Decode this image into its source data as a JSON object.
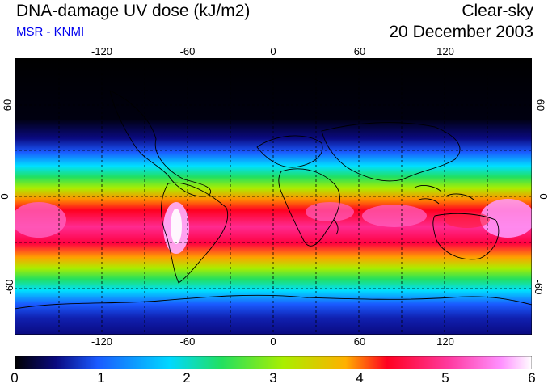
{
  "header": {
    "title": "DNA-damage UV dose (kJ/m2)",
    "subtitle": "MSR - KNMI",
    "condition": "Clear-sky",
    "date": "20 December 2003"
  },
  "map": {
    "projection": "cylindrical",
    "lon_ticks": [
      "-120",
      "-60",
      "0",
      "60",
      "120"
    ],
    "lat_ticks_left": [
      "60",
      "0",
      "-60"
    ],
    "lat_ticks_right": [
      "60",
      "0",
      "-60"
    ],
    "gridlines": "dashed every 30 degrees"
  },
  "colorbar": {
    "labels": [
      "0",
      "1",
      "2",
      "3",
      "4",
      "5",
      "6"
    ],
    "min": 0,
    "max": 6,
    "colors": [
      "#000000",
      "#0a0a80",
      "#1a5aff",
      "#00d8ff",
      "#22e060",
      "#aaee00",
      "#ffb000",
      "#ff0020",
      "#ff3aa0",
      "#ff90ff",
      "#ffffff"
    ]
  }
}
